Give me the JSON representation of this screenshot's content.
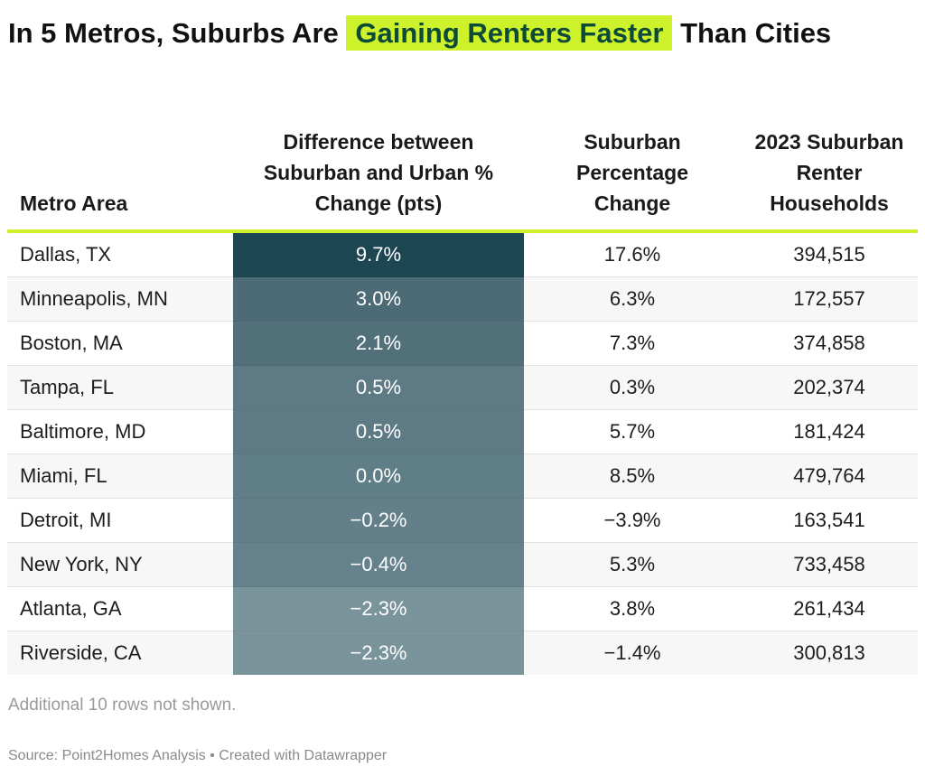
{
  "title": {
    "before": "In 5 Metros, Suburbs Are",
    "highlight": "Gaining Renters Faster",
    "after": "Than Cities"
  },
  "colors": {
    "highlight_bg": "#cdf22b",
    "highlight_text": "#0d4a38",
    "header_rule": "#cdf22b"
  },
  "chart_data": {
    "type": "table",
    "columns": [
      "Metro Area",
      "Difference between Suburban and Urban % Change (pts)",
      "Suburban Percentage Change",
      "2023 Suburban Renter Households"
    ],
    "rows": [
      {
        "metro": "Dallas, TX",
        "diff": "9.7%",
        "suburban_change": "17.6%",
        "households": "394,515",
        "heat_color": "#1d4653"
      },
      {
        "metro": "Minneapolis, MN",
        "diff": "3.0%",
        "suburban_change": "6.3%",
        "households": "172,557",
        "heat_color": "#4d6b76"
      },
      {
        "metro": "Boston, MA",
        "diff": "2.1%",
        "suburban_change": "7.3%",
        "households": "374,858",
        "heat_color": "#527079"
      },
      {
        "metro": "Tampa, FL",
        "diff": "0.5%",
        "suburban_change": "0.3%",
        "households": "202,374",
        "heat_color": "#5e7b85"
      },
      {
        "metro": "Baltimore, MD",
        "diff": "0.5%",
        "suburban_change": "5.7%",
        "households": "181,424",
        "heat_color": "#5e7b85"
      },
      {
        "metro": "Miami, FL",
        "diff": "0.0%",
        "suburban_change": "8.5%",
        "households": "479,764",
        "heat_color": "#607e88"
      },
      {
        "metro": "Detroit, MI",
        "diff": "−0.2%",
        "suburban_change": "−3.9%",
        "households": "163,541",
        "heat_color": "#637f89"
      },
      {
        "metro": "New York, NY",
        "diff": "−0.4%",
        "suburban_change": "5.3%",
        "households": "733,458",
        "heat_color": "#65818b"
      },
      {
        "metro": "Atlanta, GA",
        "diff": "−2.3%",
        "suburban_change": "3.8%",
        "households": "261,434",
        "heat_color": "#7a949b"
      },
      {
        "metro": "Riverside, CA",
        "diff": "−2.3%",
        "suburban_change": "−1.4%",
        "households": "300,813",
        "heat_color": "#7a949b"
      }
    ]
  },
  "footer": {
    "note": "Additional 10 rows not shown.",
    "source": "Source: Point2Homes Analysis • Created with Datawrapper"
  }
}
